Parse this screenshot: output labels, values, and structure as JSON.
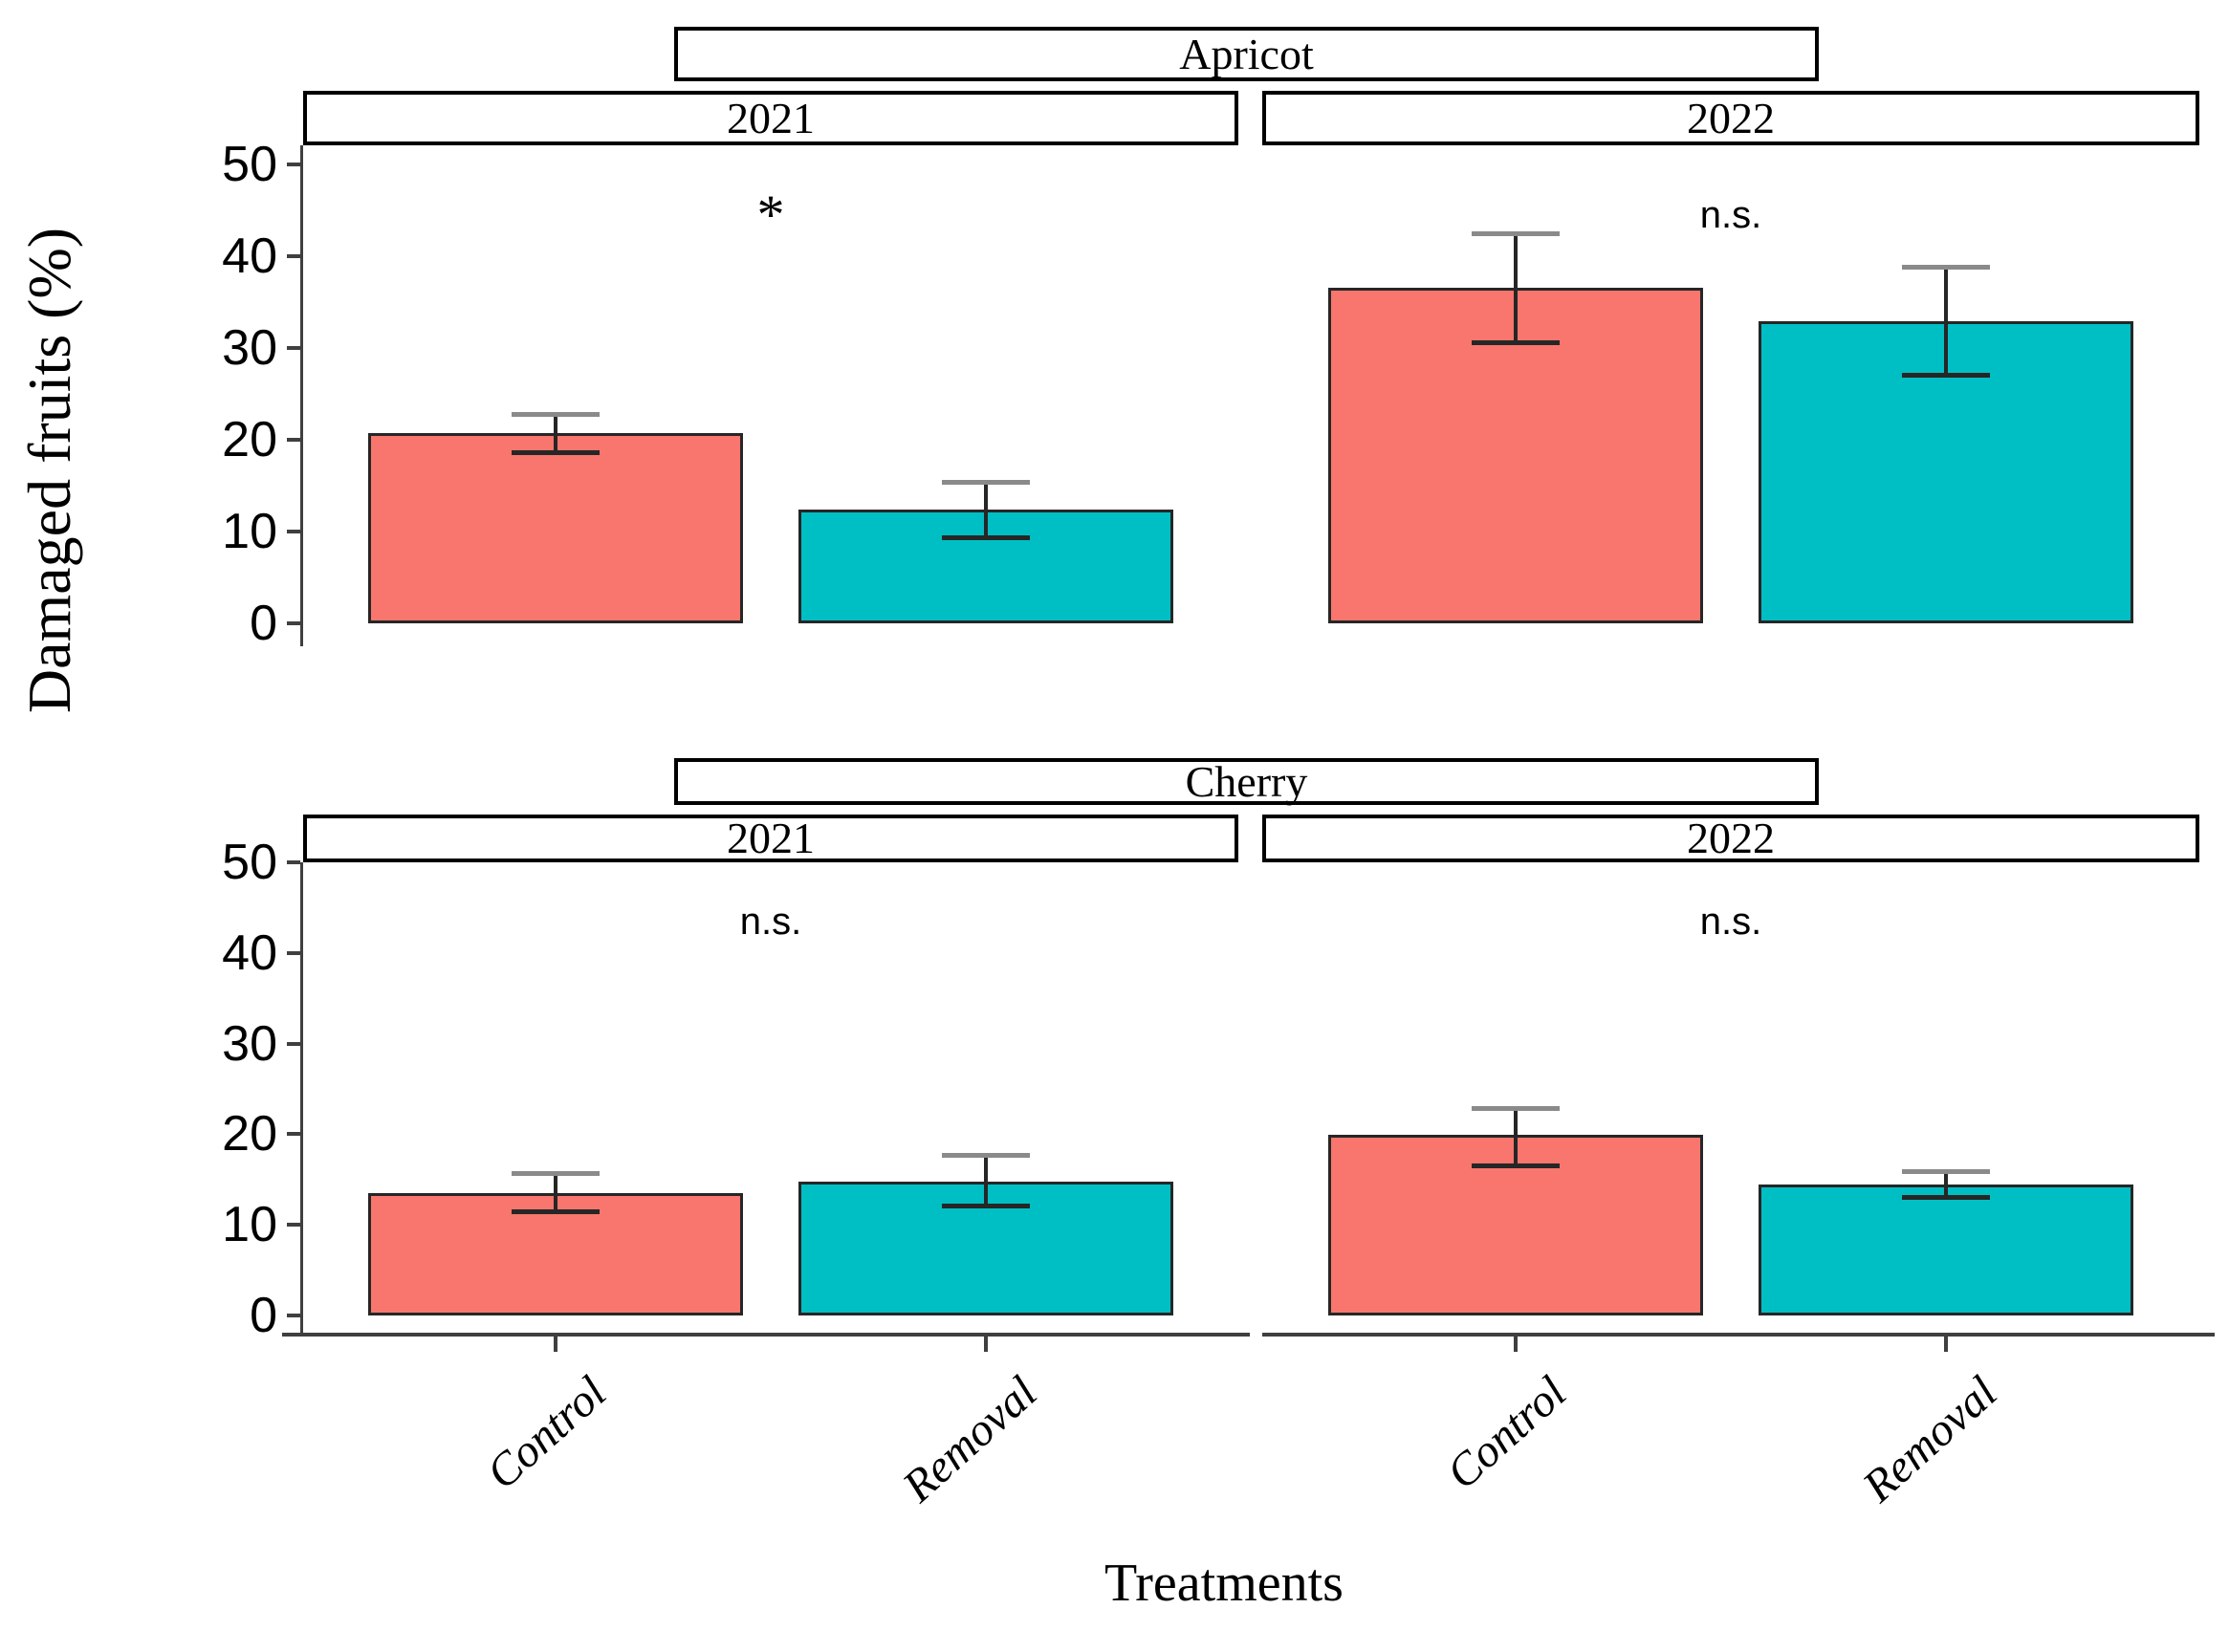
{
  "figure": {
    "y_axis_title": "Damaged fruits (%)",
    "x_axis_title": "Treatments",
    "colors": {
      "control_fill": "#F8766D",
      "removal_fill": "#00BFC4",
      "bar_stroke": "#262626",
      "axis": "#3f3f3f",
      "strip_border": "#000000",
      "strip_fill": "#ffffff",
      "text": "#000000"
    }
  },
  "chart_data": {
    "type": "bar",
    "title": "",
    "xlabel": "Treatments",
    "ylabel": "Damaged fruits (%)",
    "facet_rows": [
      "Apricot",
      "Cherry"
    ],
    "facet_cols": [
      "2021",
      "2022"
    ],
    "categories": [
      "Control",
      "Removal"
    ],
    "ylim": [
      0,
      52
    ],
    "yticks": [
      0,
      10,
      20,
      30,
      40,
      50
    ],
    "grid": "off",
    "legend": "none",
    "error_bars": "mean ± SE, estimated from figure",
    "panels": [
      {
        "row": "Apricot",
        "col": "2021",
        "significance": "*",
        "bars": [
          {
            "treatment": "Control",
            "value": 20.7,
            "err_low": 18.6,
            "err_high": 22.8
          },
          {
            "treatment": "Removal",
            "value": 12.4,
            "err_low": 9.4,
            "err_high": 15.4
          }
        ]
      },
      {
        "row": "Apricot",
        "col": "2022",
        "significance": "n.s.",
        "bars": [
          {
            "treatment": "Control",
            "value": 36.6,
            "err_low": 30.6,
            "err_high": 42.5
          },
          {
            "treatment": "Removal",
            "value": 32.9,
            "err_low": 27.1,
            "err_high": 38.9
          }
        ]
      },
      {
        "row": "Cherry",
        "col": "2021",
        "significance": "n.s.",
        "bars": [
          {
            "treatment": "Control",
            "value": 13.5,
            "err_low": 11.5,
            "err_high": 15.7
          },
          {
            "treatment": "Removal",
            "value": 14.8,
            "err_low": 12.1,
            "err_high": 17.7
          }
        ]
      },
      {
        "row": "Cherry",
        "col": "2022",
        "significance": "n.s.",
        "bars": [
          {
            "treatment": "Control",
            "value": 19.9,
            "err_low": 16.6,
            "err_high": 22.9
          },
          {
            "treatment": "Removal",
            "value": 14.4,
            "err_low": 13.1,
            "err_high": 15.9
          }
        ]
      }
    ]
  }
}
